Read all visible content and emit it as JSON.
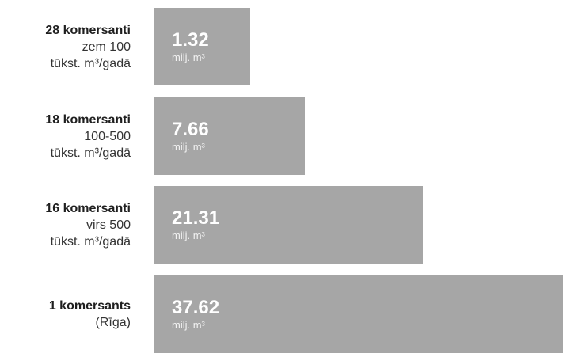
{
  "chart_data": {
    "type": "bar",
    "orientation": "horizontal",
    "bar_color": "#a6a6a6",
    "categories": [
      {
        "name": "28 komersanti",
        "desc": [
          "zem 100",
          "tūkst. m³/gadā"
        ]
      },
      {
        "name": "18 komersanti",
        "desc": [
          "100-500",
          "tūkst. m³/gadā"
        ]
      },
      {
        "name": "16 komersanti",
        "desc": [
          "virs 500",
          "tūkst. m³/gadā"
        ]
      },
      {
        "name": "1 komersants",
        "desc": [
          "(Rīga)"
        ]
      }
    ],
    "values": [
      1.32,
      7.66,
      21.31,
      37.62
    ],
    "value_labels": [
      "1.32",
      "7.66",
      "21.31",
      "37.62"
    ],
    "unit": "milj. m³"
  }
}
